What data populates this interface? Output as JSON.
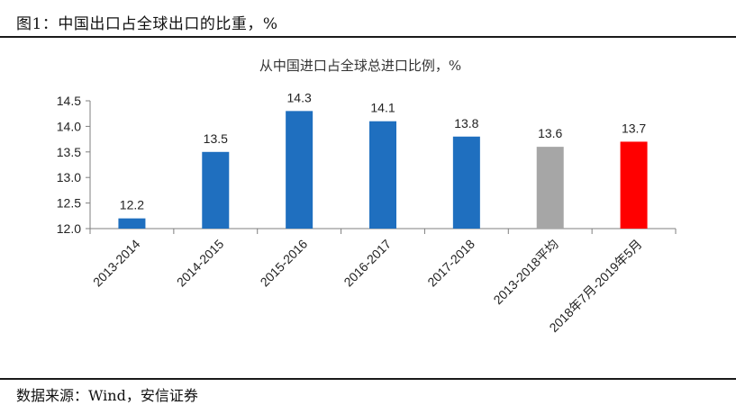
{
  "figure": {
    "title": "图1：中国出口占全球出口的比重，%",
    "source": "数据来源：Wind，安信证券"
  },
  "colors": {
    "bar_blue": "#1f6fbf",
    "bar_gray": "#a6a6a6",
    "bar_red": "#ff0000"
  },
  "chart_data": {
    "type": "bar",
    "title": "从中国进口占全球总进口比例，%",
    "categories": [
      "2013-2014",
      "2014-2015",
      "2015-2016",
      "2016-2017",
      "2017-2018",
      "2013-2018平均",
      "2018年7月-2019年5月"
    ],
    "values": [
      12.2,
      13.5,
      14.3,
      14.1,
      13.8,
      13.6,
      13.7
    ],
    "data_labels": [
      "12.2",
      "13.5",
      "14.3",
      "14.1",
      "13.8",
      "13.6",
      "13.7"
    ],
    "bar_colors": [
      "blue",
      "blue",
      "blue",
      "blue",
      "blue",
      "gray",
      "red"
    ],
    "ylim": [
      12.0,
      14.5
    ],
    "yticks": [
      "12.0",
      "12.5",
      "13.0",
      "13.5",
      "14.0",
      "14.5"
    ],
    "xlabel": "",
    "ylabel": "",
    "grid": false,
    "legend": "none"
  }
}
